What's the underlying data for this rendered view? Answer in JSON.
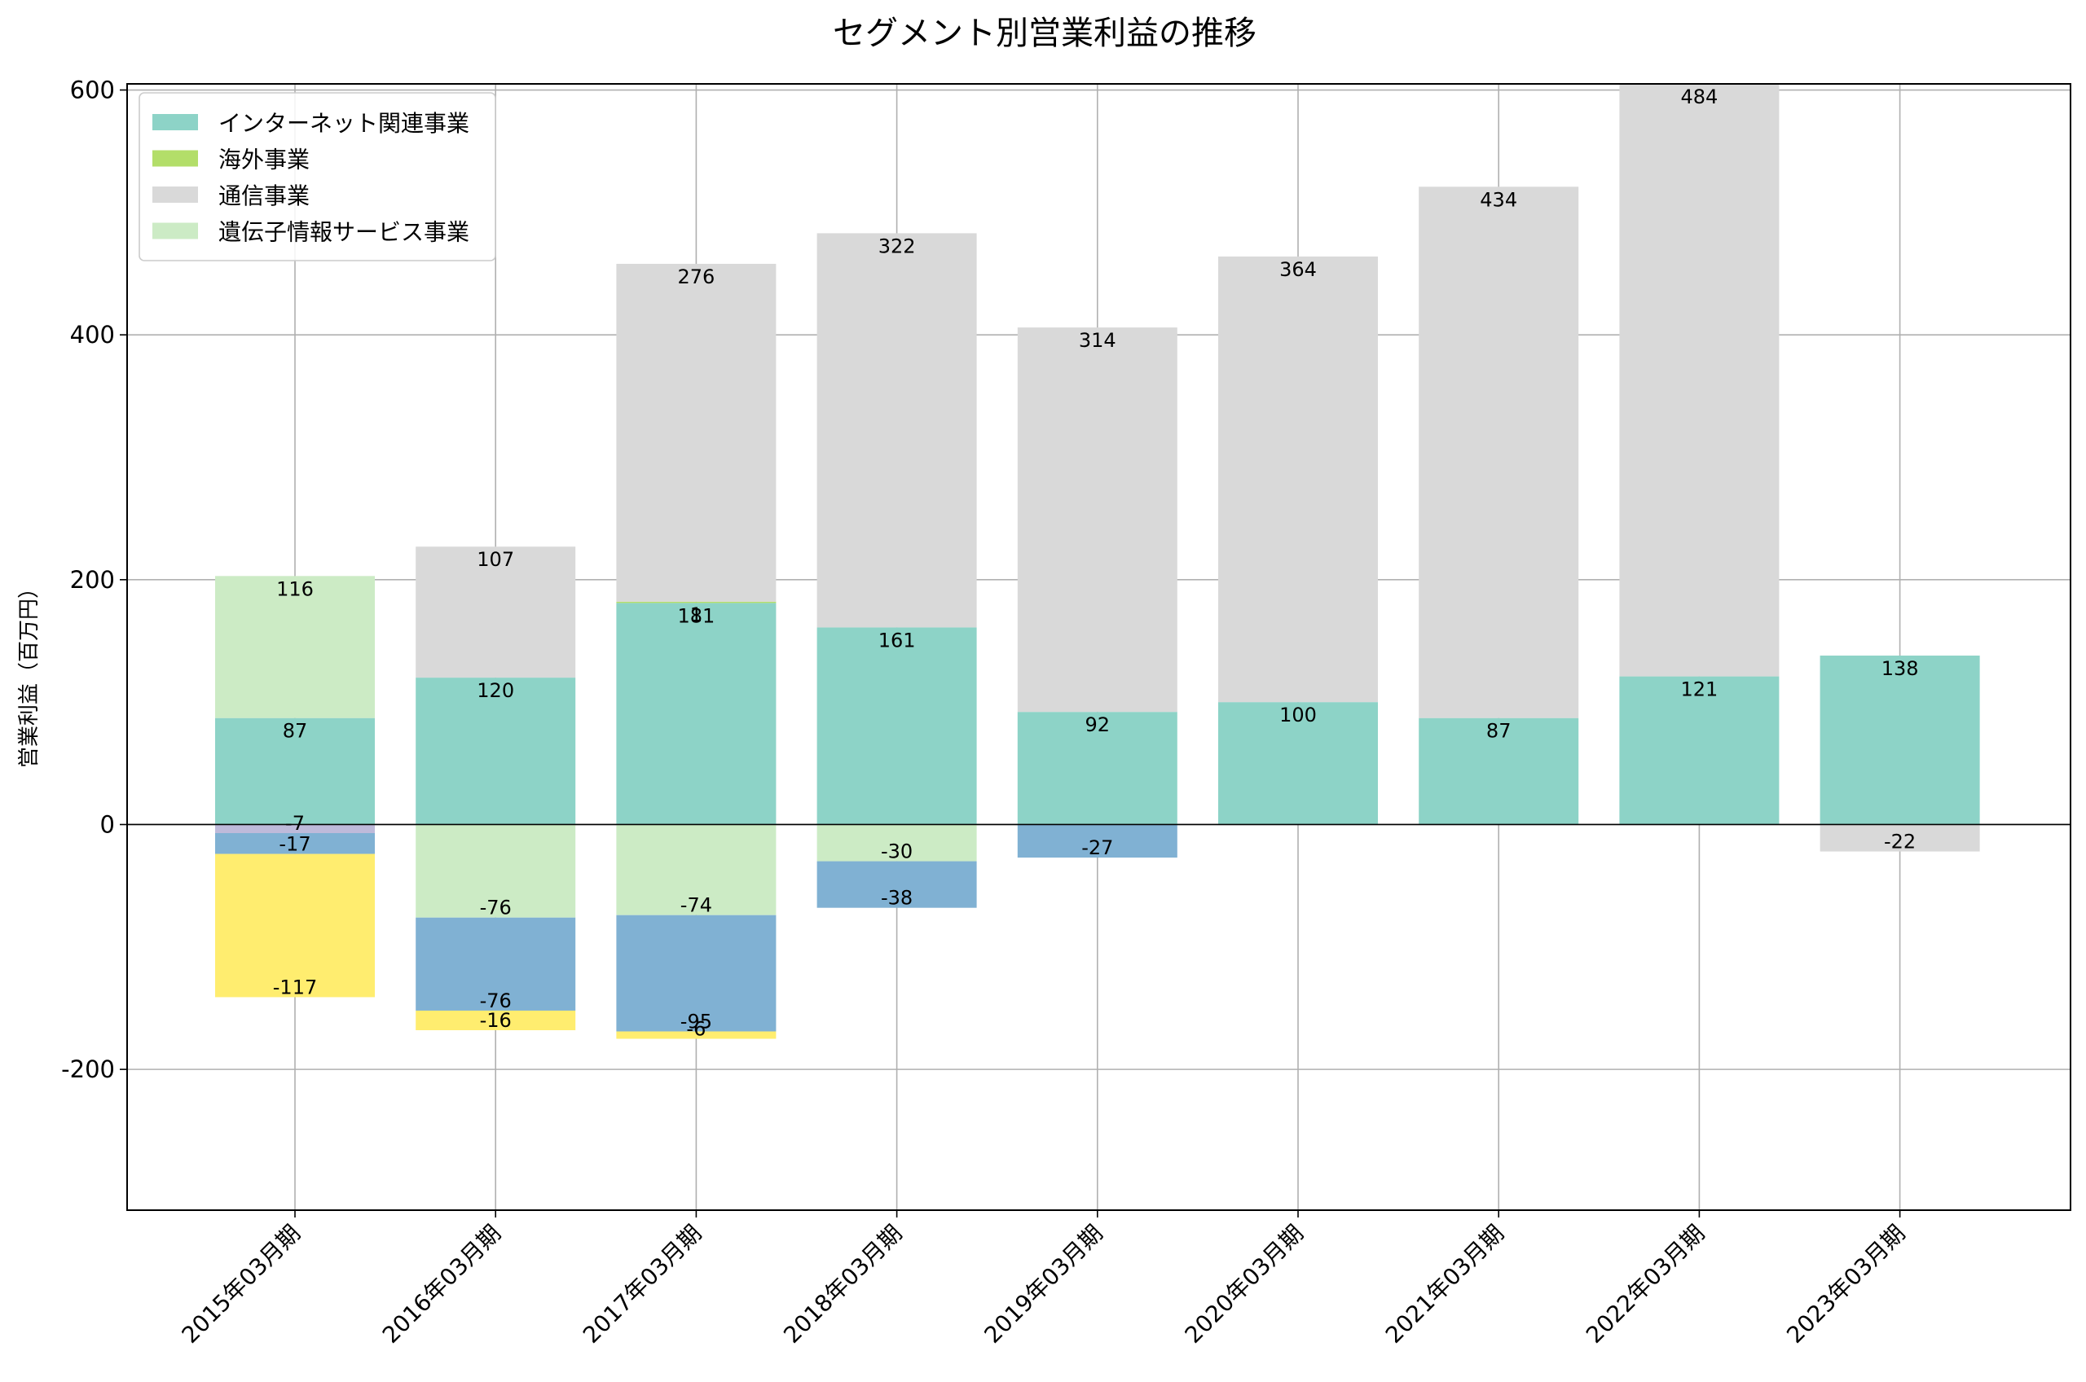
{
  "chart_data": {
    "type": "bar",
    "stacked": true,
    "title": "セグメント別営業利益の推移",
    "xlabel": "",
    "ylabel": "営業利益（百万円）",
    "ylim": [
      -315,
      605
    ],
    "yticks": [
      -200,
      0,
      200,
      400,
      600
    ],
    "yticklabels": [
      "-200",
      "0",
      "200",
      "400",
      "600"
    ],
    "grid": true,
    "legend_position": "top-left",
    "categories": [
      "2015年03月期",
      "2016年03月期",
      "2017年03月期",
      "2018年03月期",
      "2019年03月期",
      "2020年03月期",
      "2021年03月期",
      "2022年03月期",
      "2023年03月期"
    ],
    "series": [
      {
        "name": "インターネット関連事業",
        "color": "#8dd3c7",
        "legend": true,
        "values": [
          87,
          120,
          181,
          161,
          92,
          100,
          87,
          121,
          138
        ]
      },
      {
        "name": "海外事業",
        "color": "#b3de69",
        "legend": true,
        "values": [
          null,
          null,
          1,
          null,
          null,
          null,
          null,
          null,
          null
        ]
      },
      {
        "name": "通信事業",
        "color": "#d9d9d9",
        "legend": true,
        "values": [
          null,
          107,
          276,
          322,
          314,
          364,
          434,
          484,
          -22
        ]
      },
      {
        "name": "遺伝子情報サービス事業",
        "color": "#ccebc5",
        "legend": true,
        "values": [
          116,
          -76,
          -74,
          -30,
          null,
          null,
          null,
          null,
          null
        ]
      },
      {
        "name": "",
        "color": "#bebada",
        "legend": false,
        "values": [
          -7,
          null,
          null,
          null,
          null,
          null,
          null,
          null,
          null
        ]
      },
      {
        "name": "",
        "color": "#80b1d3",
        "legend": false,
        "values": [
          -17,
          -76,
          -95,
          -38,
          -27,
          null,
          null,
          null,
          null
        ]
      },
      {
        "name": "",
        "color": "#ffed6f",
        "legend": false,
        "values": [
          -117,
          -16,
          -6,
          null,
          null,
          null,
          null,
          null,
          null
        ]
      }
    ]
  }
}
